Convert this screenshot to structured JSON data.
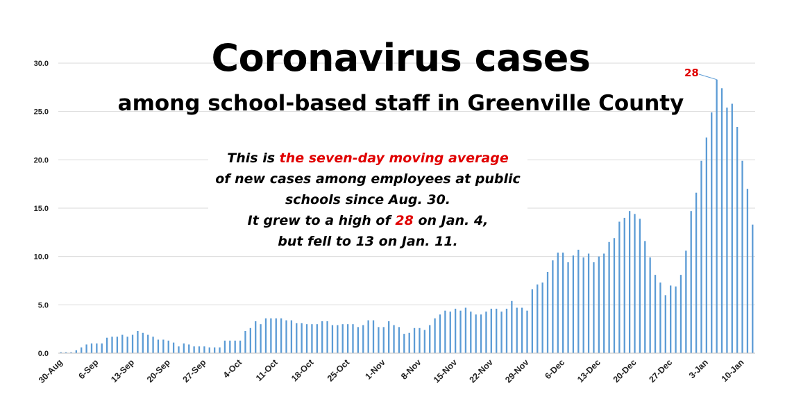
{
  "chart_data": {
    "type": "bar",
    "title": "Coronavirus cases",
    "subtitle": "among school-based staff in Greenville County",
    "note": {
      "lead": "This is ",
      "highlight": "the seven-day moving average",
      "line2": "of new cases among employees at public",
      "line3": "schools since Aug. 30.",
      "line4_pre": "It grew to a high of ",
      "line4_value": "28",
      "line4_post": " on Jan. 4,",
      "line5": "but fell to 13 on Jan. 11."
    },
    "peak_label": "28",
    "ylim": [
      0,
      30
    ],
    "yticks": [
      "0.0",
      "5.0",
      "10.0",
      "15.0",
      "20.0",
      "25.0",
      "30.0"
    ],
    "xtick_labels": [
      "30-Aug",
      "6-Sep",
      "13-Sep",
      "20-Sep",
      "27-Sep",
      "4-Oct",
      "11-Oct",
      "18-Oct",
      "25-Oct",
      "1-Nov",
      "8-Nov",
      "15-Nov",
      "22-Nov",
      "29-Nov",
      "6-Dec",
      "13-Dec",
      "20-Dec",
      "27-Dec",
      "3-Jan",
      "10-Jan"
    ],
    "grid": true,
    "bar_color": "#5b9bd5",
    "accent_color": "#e00000",
    "values": [
      0.1,
      0.1,
      0.1,
      0.3,
      0.6,
      0.9,
      1.0,
      1.0,
      1.0,
      1.6,
      1.7,
      1.7,
      1.9,
      1.7,
      1.9,
      2.3,
      2.1,
      1.9,
      1.7,
      1.4,
      1.4,
      1.3,
      1.1,
      0.7,
      1.0,
      0.9,
      0.7,
      0.7,
      0.7,
      0.6,
      0.6,
      0.6,
      1.3,
      1.3,
      1.3,
      1.3,
      2.3,
      2.6,
      3.3,
      3.0,
      3.6,
      3.6,
      3.6,
      3.6,
      3.4,
      3.4,
      3.1,
      3.1,
      3.0,
      3.0,
      3.0,
      3.3,
      3.3,
      2.9,
      2.9,
      3.0,
      3.0,
      3.0,
      2.7,
      2.9,
      3.4,
      3.4,
      2.7,
      2.7,
      3.3,
      2.9,
      2.7,
      2.0,
      2.1,
      2.6,
      2.6,
      2.4,
      2.9,
      3.6,
      4.0,
      4.4,
      4.3,
      4.6,
      4.4,
      4.7,
      4.3,
      4.0,
      4.0,
      4.3,
      4.6,
      4.6,
      4.3,
      4.6,
      5.4,
      4.7,
      4.7,
      4.4,
      6.6,
      7.1,
      7.3,
      8.4,
      9.6,
      10.4,
      10.4,
      9.4,
      10.1,
      10.7,
      9.9,
      10.3,
      9.4,
      10.0,
      10.3,
      11.5,
      11.9,
      13.6,
      14.0,
      14.7,
      14.4,
      13.9,
      11.6,
      9.9,
      8.1,
      7.3,
      6.0,
      7.0,
      6.9,
      8.1,
      10.6,
      14.7,
      16.6,
      19.9,
      22.3,
      24.9,
      28.3,
      27.4,
      25.4,
      25.8,
      23.4,
      19.9,
      17.0,
      13.3
    ]
  }
}
